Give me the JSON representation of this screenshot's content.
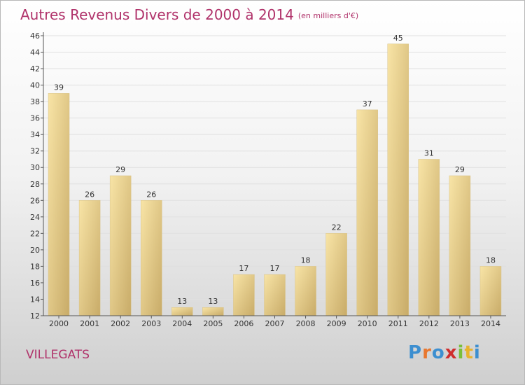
{
  "header": {
    "title": "Autres Revenus Divers de 2000 à 2014",
    "unit": "(en milliers d'€)"
  },
  "footer": {
    "place": "VILLEGATS",
    "logo": "Proxiti"
  },
  "colors": {
    "title": "#b0326a",
    "bar_light": "#f6df9c",
    "bar_dark": "#c8ab68"
  },
  "chart_data": {
    "type": "bar",
    "title": "Autres Revenus Divers de 2000 à 2014",
    "xlabel": "",
    "ylabel": "",
    "categories": [
      "2000",
      "2001",
      "2002",
      "2003",
      "2004",
      "2005",
      "2006",
      "2007",
      "2008",
      "2009",
      "2010",
      "2011",
      "2012",
      "2013",
      "2014"
    ],
    "values": [
      39,
      26,
      29,
      26,
      13,
      13,
      17,
      17,
      18,
      22,
      37,
      45,
      31,
      29,
      18
    ],
    "ylim": [
      12,
      46
    ],
    "yticks": [
      12,
      14,
      16,
      18,
      20,
      22,
      24,
      26,
      28,
      30,
      32,
      34,
      36,
      38,
      40,
      42,
      44,
      46
    ],
    "grid": true
  }
}
